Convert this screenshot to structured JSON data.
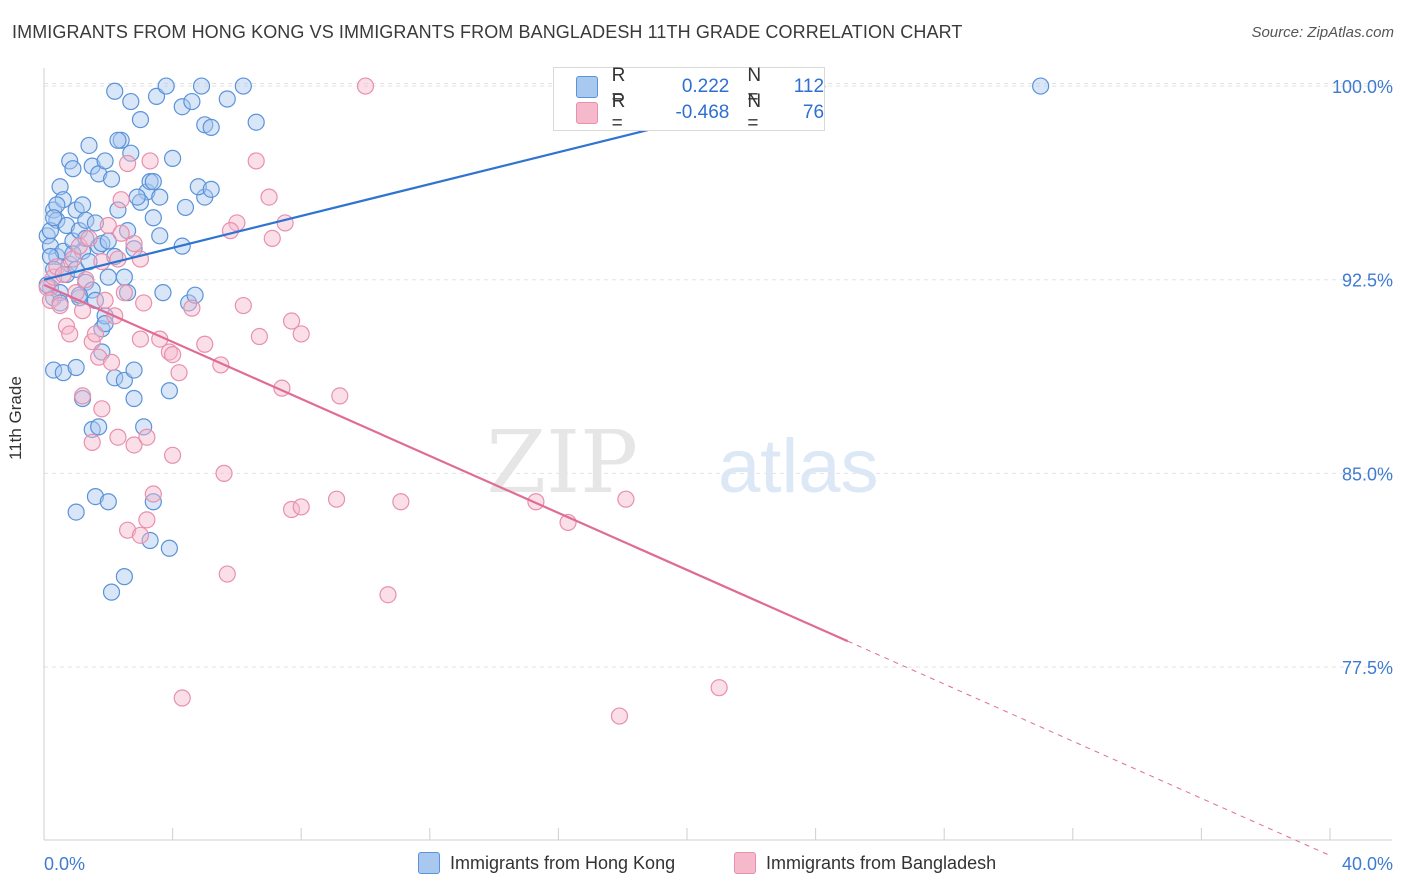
{
  "header": {
    "title": "IMMIGRANTS FROM HONG KONG VS IMMIGRANTS FROM BANGLADESH 11TH GRADE CORRELATION CHART",
    "source": "Source: ZipAtlas.com"
  },
  "watermark": {
    "zip": "ZIP",
    "atlas": "atlas"
  },
  "stats_legend": {
    "r_label": "R =",
    "n_label": "N =",
    "rows": [
      {
        "r": "0.222",
        "n": "112",
        "color": "#a8c8f0"
      },
      {
        "r": "-0.468",
        "n": "76",
        "color": "#f6b8cb"
      }
    ]
  },
  "colors": {
    "hong_kong_fill": "#a8c8f0",
    "hong_kong_stroke": "#5b93d9",
    "hong_kong_line": "#2f74d0",
    "bangladesh_fill": "#f6b8cb",
    "bangladesh_stroke": "#e890ac",
    "bangladesh_line": "#e06c95",
    "tick_label": "#3f7bd1",
    "grid": "#e3e3e3"
  },
  "chart_data": {
    "type": "scatter",
    "title": "IMMIGRANTS FROM HONG KONG VS IMMIGRANTS FROM BANGLADESH 11TH GRADE CORRELATION CHART",
    "xlabel": "",
    "ylabel": "11th Grade",
    "xlim": [
      0,
      40
    ],
    "ylim": [
      70.8,
      100.7
    ],
    "x_tick_labels": [
      "0.0%",
      "40.0%"
    ],
    "y_ticks": [
      77.5,
      85.0,
      92.5,
      100.0
    ],
    "y_tick_labels": [
      "77.5%",
      "85.0%",
      "92.5%",
      "100.0%"
    ],
    "grid": "horizontal dashed",
    "legend_position": "bottom",
    "series": [
      {
        "name": "Immigrants from Hong Kong",
        "r": 0.222,
        "n": 112,
        "trend": {
          "x": [
            0.0,
            24.3
          ],
          "y": [
            92.5,
            100.0
          ],
          "dashed_to": 24.3
        },
        "points": [
          [
            0.1,
            94.2
          ],
          [
            0.2,
            93.8
          ],
          [
            0.2,
            92.2
          ],
          [
            0.3,
            91.8
          ],
          [
            0.3,
            95.2
          ],
          [
            0.4,
            94.8
          ],
          [
            0.4,
            93.4
          ],
          [
            0.5,
            96.1
          ],
          [
            0.5,
            92.0
          ],
          [
            0.6,
            93.6
          ],
          [
            0.6,
            95.6
          ],
          [
            0.7,
            94.6
          ],
          [
            0.7,
            92.7
          ],
          [
            0.8,
            97.1
          ],
          [
            0.8,
            93.1
          ],
          [
            0.9,
            96.8
          ],
          [
            0.9,
            94.0
          ],
          [
            1.0,
            95.2
          ],
          [
            1.0,
            92.9
          ],
          [
            1.1,
            94.4
          ],
          [
            1.1,
            91.8
          ],
          [
            1.2,
            95.4
          ],
          [
            1.2,
            93.6
          ],
          [
            1.3,
            94.8
          ],
          [
            1.3,
            92.4
          ],
          [
            1.4,
            97.7
          ],
          [
            1.4,
            93.2
          ],
          [
            1.5,
            96.9
          ],
          [
            1.5,
            92.1
          ],
          [
            1.6,
            94.7
          ],
          [
            1.6,
            91.7
          ],
          [
            1.7,
            96.6
          ],
          [
            1.7,
            93.8
          ],
          [
            1.8,
            90.6
          ],
          [
            1.8,
            93.9
          ],
          [
            1.9,
            97.1
          ],
          [
            1.9,
            91.1
          ],
          [
            2.0,
            94.0
          ],
          [
            2.1,
            96.4
          ],
          [
            2.2,
            93.4
          ],
          [
            2.3,
            95.2
          ],
          [
            2.4,
            97.9
          ],
          [
            2.5,
            92.6
          ],
          [
            2.6,
            94.4
          ],
          [
            2.7,
            97.4
          ],
          [
            2.8,
            93.7
          ],
          [
            3.0,
            98.7
          ],
          [
            3.2,
            95.9
          ],
          [
            3.3,
            96.3
          ],
          [
            3.4,
            94.9
          ],
          [
            3.5,
            99.6
          ],
          [
            3.6,
            95.7
          ],
          [
            3.7,
            92.0
          ],
          [
            4.0,
            97.2
          ],
          [
            4.3,
            99.2
          ],
          [
            4.6,
            99.4
          ],
          [
            5.0,
            98.5
          ],
          [
            5.2,
            98.4
          ],
          [
            0.3,
            89.0
          ],
          [
            0.6,
            88.9
          ],
          [
            1.0,
            89.1
          ],
          [
            1.2,
            87.9
          ],
          [
            1.5,
            86.7
          ],
          [
            1.7,
            86.8
          ],
          [
            2.2,
            88.7
          ],
          [
            2.5,
            88.6
          ],
          [
            2.8,
            87.9
          ],
          [
            3.1,
            86.8
          ],
          [
            1.6,
            84.1
          ],
          [
            2.0,
            83.9
          ],
          [
            3.4,
            83.9
          ],
          [
            1.0,
            83.5
          ],
          [
            3.3,
            82.4
          ],
          [
            3.9,
            82.1
          ],
          [
            2.5,
            81.0
          ],
          [
            2.1,
            80.4
          ],
          [
            1.8,
            89.7
          ],
          [
            2.8,
            89.0
          ],
          [
            3.9,
            88.2
          ],
          [
            4.5,
            91.6
          ],
          [
            4.3,
            93.8
          ],
          [
            4.7,
            91.9
          ],
          [
            3.0,
            95.5
          ],
          [
            2.7,
            99.4
          ],
          [
            3.8,
            100.0
          ],
          [
            2.2,
            99.8
          ],
          [
            4.9,
            100.0
          ],
          [
            6.2,
            100.0
          ],
          [
            5.7,
            99.5
          ],
          [
            6.6,
            98.6
          ],
          [
            0.1,
            92.3
          ],
          [
            0.2,
            93.4
          ],
          [
            0.3,
            92.9
          ],
          [
            0.4,
            95.4
          ],
          [
            0.5,
            91.6
          ],
          [
            0.2,
            94.4
          ],
          [
            0.3,
            94.9
          ],
          [
            2.0,
            92.6
          ],
          [
            1.1,
            91.9
          ],
          [
            1.9,
            90.8
          ],
          [
            31.0,
            100.0
          ],
          [
            2.6,
            92.0
          ],
          [
            4.4,
            95.3
          ],
          [
            5.0,
            95.7
          ],
          [
            3.6,
            94.2
          ],
          [
            3.4,
            96.3
          ],
          [
            2.9,
            95.7
          ],
          [
            4.8,
            96.1
          ],
          [
            5.2,
            96.0
          ],
          [
            2.3,
            97.9
          ],
          [
            0.9,
            93.5
          ],
          [
            1.3,
            94.1
          ]
        ]
      },
      {
        "name": "Immigrants from Bangladesh",
        "r": -0.468,
        "n": 76,
        "trend": {
          "x": [
            0.0,
            25.0
          ],
          "y": [
            92.3,
            78.5
          ],
          "dashed_to": 40.0,
          "dashed_y": 70.2
        },
        "points": [
          [
            0.1,
            92.2
          ],
          [
            0.2,
            91.7
          ],
          [
            0.3,
            92.6
          ],
          [
            0.4,
            93.0
          ],
          [
            0.5,
            91.5
          ],
          [
            0.6,
            92.7
          ],
          [
            0.7,
            90.7
          ],
          [
            0.8,
            90.4
          ],
          [
            0.9,
            93.3
          ],
          [
            1.0,
            92.0
          ],
          [
            1.1,
            93.8
          ],
          [
            1.2,
            91.3
          ],
          [
            1.3,
            92.5
          ],
          [
            1.4,
            94.1
          ],
          [
            1.5,
            90.1
          ],
          [
            1.6,
            90.4
          ],
          [
            1.7,
            89.5
          ],
          [
            1.8,
            93.2
          ],
          [
            1.9,
            91.7
          ],
          [
            2.0,
            94.6
          ],
          [
            2.1,
            89.3
          ],
          [
            2.2,
            91.1
          ],
          [
            2.3,
            93.3
          ],
          [
            2.4,
            95.6
          ],
          [
            2.5,
            92.0
          ],
          [
            2.6,
            97.0
          ],
          [
            2.8,
            93.9
          ],
          [
            3.0,
            90.2
          ],
          [
            3.1,
            91.6
          ],
          [
            3.3,
            97.1
          ],
          [
            3.6,
            90.2
          ],
          [
            3.9,
            89.7
          ],
          [
            4.0,
            89.6
          ],
          [
            4.2,
            88.9
          ],
          [
            4.6,
            91.4
          ],
          [
            5.0,
            90.0
          ],
          [
            5.5,
            89.2
          ],
          [
            6.0,
            94.7
          ],
          [
            6.2,
            91.5
          ],
          [
            6.7,
            90.3
          ],
          [
            7.0,
            95.7
          ],
          [
            7.4,
            88.3
          ],
          [
            7.7,
            90.9
          ],
          [
            8.0,
            90.4
          ],
          [
            9.2,
            88.0
          ],
          [
            1.2,
            88.0
          ],
          [
            1.8,
            87.5
          ],
          [
            2.3,
            86.4
          ],
          [
            1.5,
            86.2
          ],
          [
            2.8,
            86.1
          ],
          [
            4.0,
            85.7
          ],
          [
            3.2,
            86.4
          ],
          [
            5.6,
            85.0
          ],
          [
            3.4,
            84.2
          ],
          [
            3.2,
            83.2
          ],
          [
            2.6,
            82.8
          ],
          [
            7.7,
            83.6
          ],
          [
            8.0,
            83.7
          ],
          [
            9.1,
            84.0
          ],
          [
            11.1,
            83.9
          ],
          [
            3.0,
            82.6
          ],
          [
            5.7,
            81.1
          ],
          [
            10.7,
            80.3
          ],
          [
            15.3,
            83.9
          ],
          [
            16.3,
            83.1
          ],
          [
            18.1,
            84.0
          ],
          [
            7.1,
            94.1
          ],
          [
            6.6,
            97.1
          ],
          [
            5.8,
            94.4
          ],
          [
            7.5,
            94.7
          ],
          [
            10.0,
            100.0
          ],
          [
            4.3,
            76.3
          ],
          [
            17.9,
            75.6
          ],
          [
            21.0,
            76.7
          ],
          [
            3.0,
            93.3
          ],
          [
            2.4,
            94.3
          ]
        ]
      }
    ]
  },
  "bottom_legend": {
    "items": [
      {
        "label": "Immigrants from Hong Kong",
        "color": "#a8c8f0"
      },
      {
        "label": "Immigrants from Bangladesh",
        "color": "#f6b8cb"
      }
    ]
  }
}
